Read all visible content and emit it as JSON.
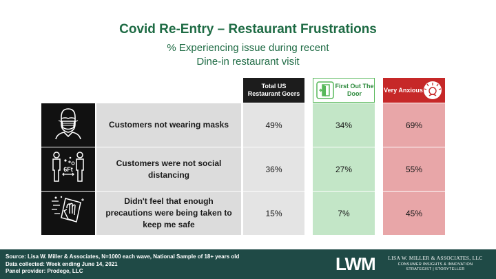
{
  "title": "Covid Re-Entry – Restaurant Frustrations",
  "subtitle_line1": "% Experiencing issue during recent",
  "subtitle_line2": "Dine-in restaurant visit",
  "columns": {
    "total": "Total  US Restaurant Goers",
    "first": "First Out The Door",
    "anxious": "Very Anxious"
  },
  "colors": {
    "title_green": "#1e6b44",
    "total_cell": "#e4e4e4",
    "first_cell": "#c3e6c7",
    "anxious_cell": "#e8a6a8",
    "anxious_header": "#c62828",
    "footer_bg": "#1f4a46"
  },
  "rows": [
    {
      "icon": "masked-face-icon",
      "label": "Customers not wearing masks",
      "total": "49%",
      "first": "34%",
      "anxious": "69%"
    },
    {
      "icon": "social-distance-6ft-icon",
      "label": "Customers were not social distancing",
      "total": "36%",
      "first": "27%",
      "anxious": "55%"
    },
    {
      "icon": "sanitizing-wipe-icon",
      "label": "Didn't feel that enough precautions were being taken to keep me safe",
      "total": "15%",
      "first": "7%",
      "anxious": "45%"
    }
  ],
  "footer": {
    "source": "Source: Lisa W. Miller & Associates,  N=1000 each wave, National Sample of 18+ years old",
    "collected": "Data collected: Week ending June 14, 2021",
    "panel": "Panel provider: Prodege, LLC"
  },
  "logo": {
    "mark": "LWM",
    "name": "LISA W. MILLER & ASSOCIATES, LLC",
    "tagline1": "CONSUMER INSIGHTS & INNOVATION",
    "tagline2": "STRATEGIST | STORYTELLER"
  }
}
